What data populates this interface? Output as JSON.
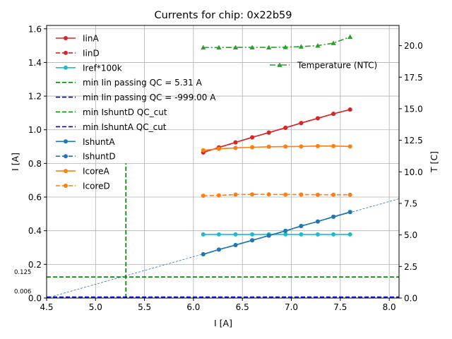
{
  "chart_data": {
    "type": "line",
    "title": "Currents for chip: 0x22b59",
    "xlabel": "I [A]",
    "ylabel": "I [A]",
    "y2label": "T [C]",
    "xlim": [
      4.5,
      8.1
    ],
    "ylim": [
      0.0,
      1.62
    ],
    "y2lim": [
      0.0,
      21.6
    ],
    "grid": true,
    "x_ticks": [
      4.5,
      5.0,
      5.5,
      6.0,
      6.5,
      7.0,
      7.5,
      8.0
    ],
    "x_tick_labels": [
      "4.5",
      "5.0",
      "5.5",
      "6.0",
      "6.5",
      "7.0",
      "7.5",
      "8.0"
    ],
    "y_ticks": [
      0.0,
      0.2,
      0.4,
      0.6,
      0.8,
      1.0,
      1.2,
      1.4,
      1.6
    ],
    "y_tick_labels": [
      "0.0",
      "0.2",
      "0.4",
      "0.6",
      "0.8",
      "1.0",
      "1.2",
      "1.4",
      "1.6"
    ],
    "y2_ticks": [
      0.0,
      2.5,
      5.0,
      7.5,
      10.0,
      12.5,
      15.0,
      17.5,
      20.0
    ],
    "y2_tick_labels": [
      "0.0",
      "2.5",
      "5.0",
      "7.5",
      "10.0",
      "12.5",
      "15.0",
      "17.5",
      "20.0"
    ],
    "x": [
      6.1,
      6.26,
      6.43,
      6.6,
      6.77,
      6.94,
      7.1,
      7.27,
      7.43,
      7.6
    ],
    "series": [
      {
        "name": "IinA",
        "color": "#d62728",
        "dash": "solid",
        "marker": "circle",
        "values": [
          0.865,
          0.895,
          0.925,
          0.955,
          0.983,
          1.012,
          1.04,
          1.068,
          1.095,
          1.12
        ]
      },
      {
        "name": "IinD",
        "color": "#d62728",
        "dash": "dashed",
        "marker": "circle",
        "values": [
          0.865,
          0.895,
          0.925,
          0.955,
          0.983,
          1.012,
          1.04,
          1.068,
          1.095,
          1.12
        ]
      },
      {
        "name": "Iref*100k",
        "color": "#17becf",
        "dash": "solid",
        "marker": "circle",
        "values": [
          0.378,
          0.378,
          0.378,
          0.378,
          0.378,
          0.378,
          0.378,
          0.378,
          0.378,
          0.378
        ]
      },
      {
        "name": "IshuntA",
        "color": "#1f77b4",
        "dash": "solid",
        "marker": "circle",
        "values": [
          0.26,
          0.288,
          0.315,
          0.343,
          0.371,
          0.399,
          0.428,
          0.455,
          0.483,
          0.511
        ]
      },
      {
        "name": "IshuntD",
        "color": "#1f77b4",
        "dash": "dashed",
        "marker": "circle",
        "values": [
          0.26,
          0.288,
          0.315,
          0.343,
          0.371,
          0.399,
          0.428,
          0.455,
          0.483,
          0.511
        ]
      },
      {
        "name": "IcoreA",
        "color": "#ff7f0e",
        "dash": "solid",
        "marker": "circle",
        "values": [
          0.878,
          0.887,
          0.892,
          0.896,
          0.899,
          0.9,
          0.901,
          0.903,
          0.903,
          0.901
        ]
      },
      {
        "name": "IcoreD",
        "color": "#ff7f0e",
        "dash": "dashed",
        "marker": "circle",
        "values": [
          0.608,
          0.61,
          0.615,
          0.616,
          0.616,
          0.615,
          0.615,
          0.614,
          0.614,
          0.614
        ]
      },
      {
        "name": "Temperature (NTC)",
        "color": "#2ca02c",
        "dash": "dashdot",
        "marker": "triangle",
        "axis": "right",
        "values": [
          19.85,
          19.85,
          19.86,
          19.86,
          19.86,
          19.88,
          19.92,
          20.0,
          20.2,
          20.7
        ]
      }
    ],
    "reference_lines": [
      {
        "name": "min Iin passing QC = 5.31 A",
        "orientation": "vertical",
        "x": 5.31,
        "y_to": 0.8,
        "color": "#008000",
        "dash": "dashed"
      },
      {
        "name": "min Iin passing QC = -999.00 A",
        "orientation": "vertical",
        "x": -999.0,
        "color": "#0000cc",
        "dash": "dashed"
      },
      {
        "name": "min IshuntD QC_cut",
        "orientation": "horizontal",
        "y": 0.125,
        "color": "#008000",
        "dash": "dashed"
      },
      {
        "name": "min IshuntA QC_cut",
        "orientation": "horizontal",
        "y": 0.006,
        "color": "#0000cc",
        "dash": "dashed"
      }
    ],
    "fit_line": {
      "color": "#1f77b4",
      "dash": "dashed",
      "x": [
        4.5,
        8.1
      ],
      "y": [
        0.0,
        0.59
      ]
    },
    "annotations": [
      "0.125",
      "0.006"
    ],
    "legend_placement": "upper-left",
    "legend2_placement": "upper-right"
  }
}
